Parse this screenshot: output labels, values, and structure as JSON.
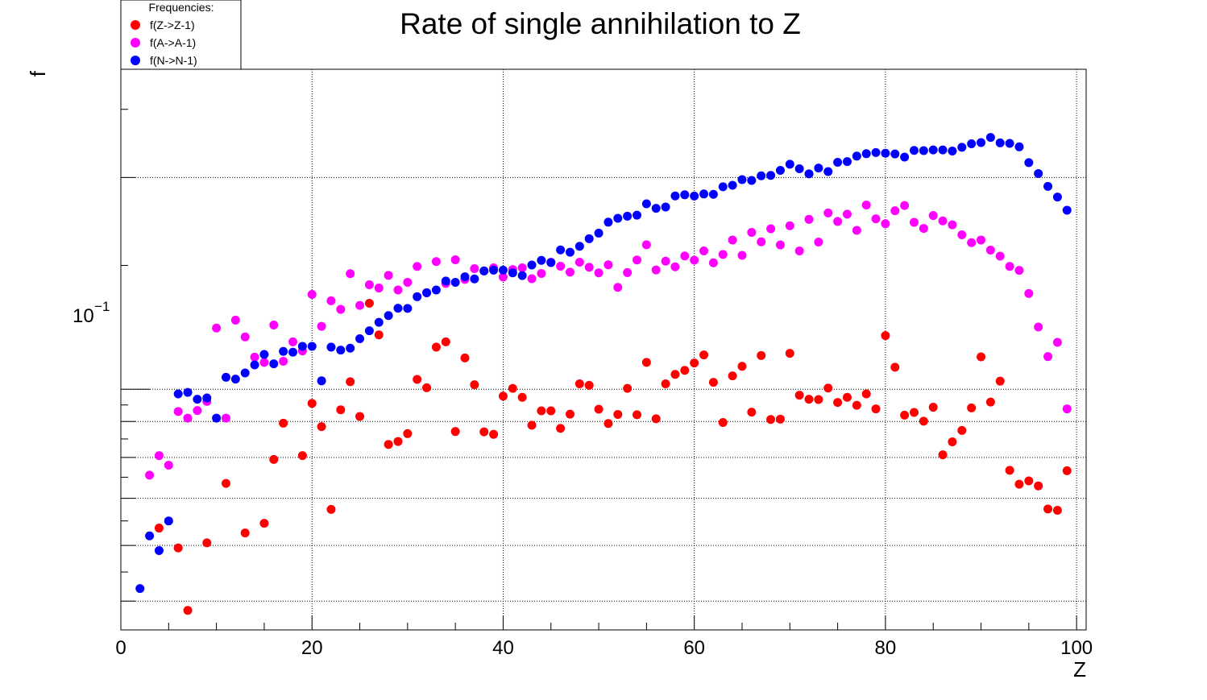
{
  "chart_data": {
    "type": "scatter",
    "title": "Rate of single annihilation to Z",
    "xlabel": "Z",
    "ylabel": "f",
    "xlim": [
      0,
      101
    ],
    "ylim": [
      0.0455,
      0.285
    ],
    "yscale": "log",
    "grid": true,
    "x_tick_labels": [
      "0",
      "20",
      "40",
      "60",
      "80",
      "100"
    ],
    "y_tick_label": {
      "base": "10",
      "exponent": "−1"
    },
    "legend": {
      "header": "Frequencies:",
      "placement": "top-left",
      "entries": [
        "f(Z->Z-1)",
        "f(A->A-1)",
        "f(N->N-1)"
      ]
    },
    "series": [
      {
        "name": "f(Z->Z-1)",
        "color": "#ff0000",
        "x": [
          4,
          6,
          7,
          9,
          11,
          13,
          15,
          16,
          17,
          19,
          20,
          21,
          22,
          23,
          24,
          25,
          26,
          27,
          28,
          29,
          30,
          31,
          32,
          33,
          34,
          35,
          36,
          37,
          38,
          39,
          40,
          41,
          42,
          43,
          44,
          45,
          46,
          47,
          48,
          49,
          50,
          51,
          52,
          53,
          54,
          55,
          56,
          57,
          58,
          59,
          60,
          61,
          62,
          63,
          64,
          65,
          66,
          67,
          68,
          69,
          70,
          71,
          72,
          73,
          74,
          75,
          76,
          77,
          78,
          79,
          80,
          81,
          82,
          83,
          84,
          85,
          86,
          87,
          88,
          89,
          90,
          91,
          92,
          93,
          94,
          95,
          96,
          97,
          98,
          99
        ],
        "y": [
          0.0635,
          0.0595,
          0.0485,
          0.0605,
          0.0735,
          0.0625,
          0.0645,
          0.0795,
          0.0895,
          0.0805,
          0.0955,
          0.0885,
          0.0675,
          0.0935,
          0.1025,
          0.0915,
          0.1325,
          0.1195,
          0.0835,
          0.0843,
          0.0865,
          0.1033,
          0.1005,
          0.1148,
          0.1168,
          0.0871,
          0.1108,
          0.1015,
          0.087,
          0.0863,
          0.0978,
          0.1003,
          0.0974,
          0.0889,
          0.0932,
          0.0932,
          0.088,
          0.0922,
          0.1018,
          0.1013,
          0.0937,
          0.0894,
          0.0921,
          0.1003,
          0.092,
          0.1092,
          0.0908,
          0.1018,
          0.105,
          0.1064,
          0.109,
          0.1119,
          0.1023,
          0.0897,
          0.1045,
          0.1078,
          0.0928,
          0.1117,
          0.0906,
          0.0907,
          0.1125,
          0.0981,
          0.0968,
          0.0967,
          0.1004,
          0.0958,
          0.0974,
          0.0949,
          0.0985,
          0.0938,
          0.1192,
          0.1075,
          0.0919,
          0.0927,
          0.0901,
          0.0943,
          0.0807,
          0.0842,
          0.0874,
          0.0941,
          0.1112,
          0.0959,
          0.1027,
          0.0767,
          0.0733,
          0.0741,
          0.0729,
          0.0676,
          0.0673,
          0.0766
        ]
      },
      {
        "name": "f(A->A-1)",
        "color": "#ff00ff",
        "x": [
          3,
          4,
          5,
          6,
          7,
          8,
          9,
          10,
          11,
          12,
          13,
          14,
          15,
          16,
          17,
          18,
          19,
          20,
          21,
          22,
          23,
          24,
          25,
          26,
          27,
          28,
          29,
          30,
          31,
          32,
          33,
          34,
          35,
          36,
          37,
          38,
          39,
          40,
          41,
          42,
          43,
          44,
          45,
          46,
          47,
          48,
          49,
          50,
          51,
          52,
          53,
          54,
          55,
          56,
          57,
          58,
          59,
          60,
          61,
          62,
          63,
          64,
          65,
          66,
          67,
          68,
          69,
          70,
          71,
          72,
          73,
          74,
          75,
          76,
          77,
          78,
          79,
          80,
          81,
          82,
          83,
          84,
          85,
          86,
          87,
          88,
          89,
          90,
          91,
          92,
          93,
          94,
          95,
          96,
          97,
          98,
          99
        ],
        "y": [
          0.0755,
          0.0805,
          0.078,
          0.093,
          0.091,
          0.0933,
          0.0961,
          0.1222,
          0.091,
          0.1254,
          0.1187,
          0.1111,
          0.1092,
          0.1234,
          0.1096,
          0.1168,
          0.1134,
          0.1364,
          0.1229,
          0.1336,
          0.1299,
          0.146,
          0.1316,
          0.1408,
          0.1393,
          0.1452,
          0.1384,
          0.1419,
          0.1495,
          0.1371,
          0.1519,
          0.1414,
          0.1528,
          0.1433,
          0.1484,
          0.1473,
          0.1488,
          0.1444,
          0.148,
          0.1488,
          0.1436,
          0.1461,
          0.1516,
          0.1496,
          0.1467,
          0.1516,
          0.1491,
          0.1464,
          0.1503,
          0.1396,
          0.1465,
          0.1527,
          0.1605,
          0.1478,
          0.1521,
          0.1493,
          0.1547,
          0.1526,
          0.1573,
          0.1513,
          0.1555,
          0.163,
          0.155,
          0.1671,
          0.162,
          0.1691,
          0.1604,
          0.1708,
          0.1573,
          0.1744,
          0.1619,
          0.1781,
          0.1732,
          0.1774,
          0.1682,
          0.1828,
          0.1747,
          0.1719,
          0.1794,
          0.1825,
          0.1727,
          0.1693,
          0.1766,
          0.1735,
          0.1713,
          0.1658,
          0.1616,
          0.163,
          0.1577,
          0.1546,
          0.1495,
          0.1476,
          0.1368,
          0.1226,
          0.1113,
          0.1166,
          0.0938
        ]
      },
      {
        "name": "f(N->N-1)",
        "color": "#0000ff",
        "x": [
          2,
          3,
          4,
          5,
          6,
          7,
          8,
          9,
          10,
          11,
          12,
          13,
          14,
          15,
          16,
          17,
          18,
          19,
          20,
          21,
          22,
          23,
          24,
          25,
          26,
          27,
          28,
          29,
          30,
          31,
          32,
          33,
          34,
          35,
          36,
          37,
          38,
          39,
          40,
          41,
          42,
          43,
          44,
          45,
          46,
          47,
          48,
          49,
          50,
          51,
          52,
          53,
          54,
          55,
          56,
          57,
          58,
          59,
          60,
          61,
          62,
          63,
          64,
          65,
          66,
          67,
          68,
          69,
          70,
          71,
          72,
          73,
          74,
          75,
          76,
          77,
          78,
          79,
          80,
          81,
          82,
          83,
          84,
          85,
          86,
          87,
          88,
          89,
          90,
          91,
          92,
          93,
          94,
          95,
          96,
          97,
          98,
          99
        ],
        "y": [
          0.0521,
          0.0619,
          0.059,
          0.065,
          0.0985,
          0.099,
          0.0968,
          0.0972,
          0.091,
          0.104,
          0.1034,
          0.1055,
          0.1083,
          0.1121,
          0.1087,
          0.1132,
          0.1129,
          0.1151,
          0.1151,
          0.1028,
          0.1148,
          0.1137,
          0.1144,
          0.118,
          0.1211,
          0.1245,
          0.1273,
          0.1304,
          0.1303,
          0.1354,
          0.1372,
          0.1384,
          0.1425,
          0.1419,
          0.1445,
          0.1435,
          0.1473,
          0.1477,
          0.1477,
          0.1464,
          0.1451,
          0.1502,
          0.1525,
          0.1514,
          0.1578,
          0.1566,
          0.1597,
          0.1637,
          0.1667,
          0.1728,
          0.175,
          0.1762,
          0.1768,
          0.1835,
          0.1808,
          0.1816,
          0.1883,
          0.189,
          0.1882,
          0.1895,
          0.1893,
          0.194,
          0.195,
          0.1986,
          0.1981,
          0.2011,
          0.2014,
          0.2047,
          0.2089,
          0.2058,
          0.2024,
          0.2063,
          0.2039,
          0.2102,
          0.2107,
          0.2145,
          0.2162,
          0.217,
          0.2165,
          0.216,
          0.2138,
          0.2185,
          0.2184,
          0.2189,
          0.2189,
          0.2181,
          0.2208,
          0.2233,
          0.2242,
          0.228,
          0.224,
          0.2236,
          0.2211,
          0.21,
          0.2026,
          0.1943,
          0.1876,
          0.1797
        ]
      }
    ]
  }
}
